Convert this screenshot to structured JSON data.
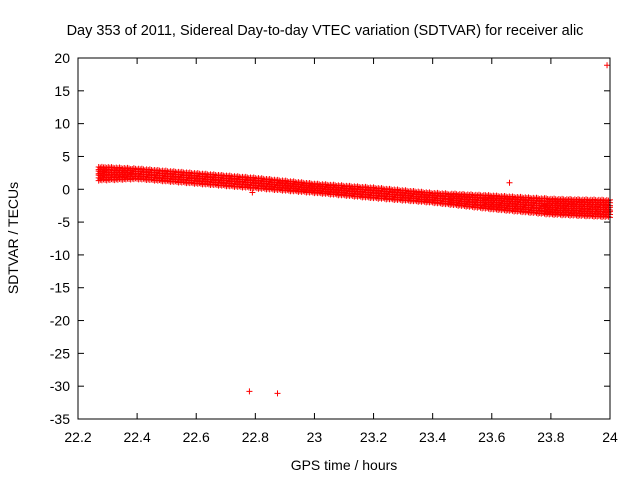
{
  "chart_data": {
    "type": "scatter",
    "title": "Day 353 of 2011, Sidereal Day-to-day VTEC variation (SDTVAR) for receiver alic",
    "xlabel": "GPS time / hours",
    "ylabel": "SDTVAR / TECUs",
    "xlim": [
      22.2,
      24
    ],
    "ylim": [
      -35,
      20
    ],
    "x_ticks": [
      22.2,
      22.4,
      22.6,
      22.8,
      23,
      23.2,
      23.4,
      23.6,
      23.8,
      24
    ],
    "x_tick_labels": [
      "22.2",
      "22.4",
      "22.6",
      "22.8",
      "23",
      "23.2",
      "23.4",
      "23.6",
      "23.8",
      "24"
    ],
    "y_ticks": [
      20,
      15,
      10,
      5,
      0,
      -5,
      -10,
      -15,
      -20,
      -25,
      -30,
      -35
    ],
    "y_tick_labels": [
      "20",
      "15",
      "10",
      "5",
      "0",
      "-5",
      "-10",
      "-15",
      "-20",
      "-25",
      "-30",
      "-35"
    ],
    "marker": "+",
    "color": "#ff0000",
    "band": {
      "description": "dense cluster of points",
      "x_range": [
        22.27,
        24.0
      ],
      "upper": [
        [
          22.27,
          3.4
        ],
        [
          22.4,
          3.1
        ],
        [
          22.6,
          2.4
        ],
        [
          22.8,
          1.7
        ],
        [
          23.0,
          0.8
        ],
        [
          23.2,
          0.2
        ],
        [
          23.4,
          -0.6
        ],
        [
          23.6,
          -1.0
        ],
        [
          23.8,
          -1.5
        ],
        [
          24.0,
          -1.7
        ]
      ],
      "lower": [
        [
          22.27,
          1.4
        ],
        [
          22.4,
          1.6
        ],
        [
          22.6,
          0.9
        ],
        [
          22.8,
          0.2
        ],
        [
          23.0,
          -0.5
        ],
        [
          23.2,
          -1.3
        ],
        [
          23.4,
          -2.0
        ],
        [
          23.6,
          -3.0
        ],
        [
          23.8,
          -3.8
        ],
        [
          24.0,
          -4.2
        ]
      ]
    },
    "outliers": [
      [
        22.78,
        -30.8
      ],
      [
        22.875,
        -31.1
      ],
      [
        23.66,
        1.0
      ],
      [
        23.99,
        18.9
      ],
      [
        22.79,
        -0.5
      ]
    ]
  }
}
